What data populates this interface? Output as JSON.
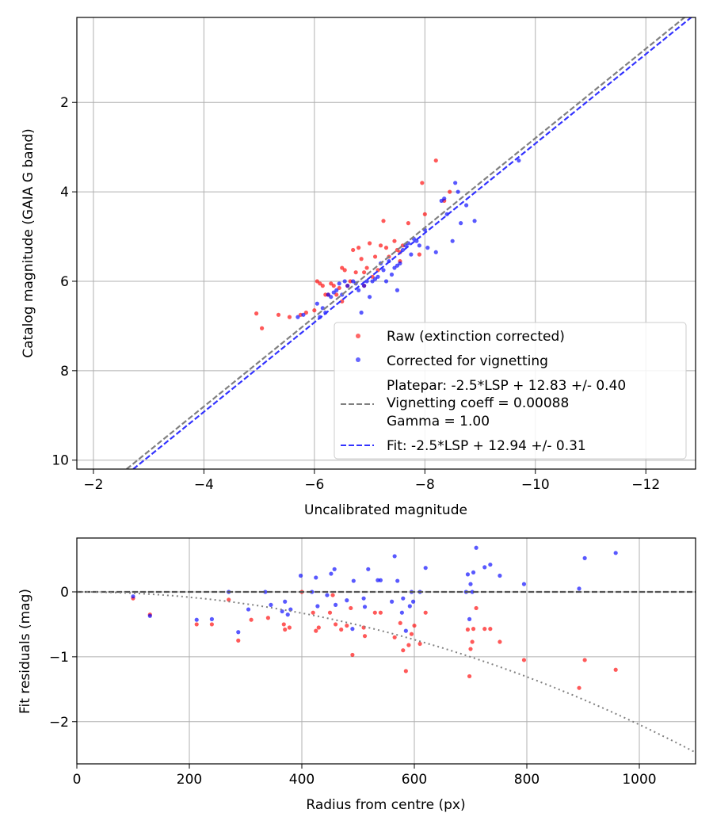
{
  "chart_data": [
    {
      "type": "scatter",
      "xlabel": "Uncalibrated magnitude",
      "ylabel": "Catalog magnitude (GAIA G band)",
      "xlim": [
        -1.7,
        -12.9
      ],
      "ylim": [
        10.2,
        0.1
      ],
      "x_ticks": [
        -2,
        -4,
        -6,
        -8,
        -10,
        -12
      ],
      "x_tick_labels": [
        "−2",
        "−4",
        "−6",
        "−8",
        "−10",
        "−12"
      ],
      "y_ticks": [
        2,
        4,
        6,
        8,
        10
      ],
      "y_tick_labels": [
        "2",
        "4",
        "6",
        "8",
        "10"
      ],
      "grid": true,
      "legend_position": "lower-right",
      "series": [
        {
          "name": "Raw (extinction corrected)",
          "kind": "scatter",
          "color": "#ff0000",
          "points": [
            [
              -4.95,
              6.72
            ],
            [
              -5.05,
              7.05
            ],
            [
              -5.35,
              6.75
            ],
            [
              -5.55,
              6.8
            ],
            [
              -5.75,
              6.75
            ],
            [
              -5.85,
              6.7
            ],
            [
              -6.0,
              6.65
            ],
            [
              -6.05,
              6.0
            ],
            [
              -6.1,
              6.05
            ],
            [
              -6.15,
              6.1
            ],
            [
              -6.2,
              6.3
            ],
            [
              -6.25,
              6.3
            ],
            [
              -6.3,
              6.05
            ],
            [
              -6.35,
              6.1
            ],
            [
              -6.4,
              6.3
            ],
            [
              -6.45,
              6.15
            ],
            [
              -6.5,
              5.7
            ],
            [
              -6.55,
              5.75
            ],
            [
              -6.6,
              6.1
            ],
            [
              -6.65,
              6.0
            ],
            [
              -6.7,
              5.3
            ],
            [
              -6.75,
              5.8
            ],
            [
              -6.8,
              5.25
            ],
            [
              -6.85,
              5.5
            ],
            [
              -6.9,
              5.8
            ],
            [
              -6.95,
              5.7
            ],
            [
              -7.0,
              5.15
            ],
            [
              -7.05,
              5.9
            ],
            [
              -7.1,
              5.45
            ],
            [
              -7.2,
              5.2
            ],
            [
              -7.25,
              4.65
            ],
            [
              -7.3,
              5.25
            ],
            [
              -7.35,
              5.45
            ],
            [
              -7.45,
              5.1
            ],
            [
              -7.5,
              5.3
            ],
            [
              -7.55,
              5.35
            ],
            [
              -7.6,
              5.2
            ],
            [
              -7.7,
              4.7
            ],
            [
              -7.9,
              5.4
            ],
            [
              -8.0,
              4.5
            ],
            [
              -7.95,
              3.8
            ],
            [
              -8.2,
              3.3
            ],
            [
              -8.35,
              4.2
            ],
            [
              -8.45,
              4.0
            ],
            [
              -7.55,
              5.55
            ],
            [
              -6.5,
              6.45
            ],
            [
              -6.9,
              6.1
            ],
            [
              -7.15,
              5.75
            ]
          ]
        },
        {
          "name": "Corrected for vignetting",
          "kind": "scatter",
          "color": "#0000ff",
          "points": [
            [
              -5.7,
              6.8
            ],
            [
              -5.8,
              6.75
            ],
            [
              -6.05,
              6.5
            ],
            [
              -6.1,
              6.8
            ],
            [
              -6.15,
              6.6
            ],
            [
              -6.2,
              6.7
            ],
            [
              -6.25,
              6.3
            ],
            [
              -6.3,
              6.35
            ],
            [
              -6.35,
              6.25
            ],
            [
              -6.4,
              6.2
            ],
            [
              -6.45,
              6.05
            ],
            [
              -6.5,
              6.3
            ],
            [
              -6.55,
              6.0
            ],
            [
              -6.6,
              6.1
            ],
            [
              -6.7,
              6.0
            ],
            [
              -6.75,
              6.05
            ],
            [
              -6.8,
              6.2
            ],
            [
              -6.85,
              6.7
            ],
            [
              -6.9,
              6.1
            ],
            [
              -6.95,
              6.0
            ],
            [
              -7.0,
              6.35
            ],
            [
              -7.05,
              6.0
            ],
            [
              -7.1,
              5.95
            ],
            [
              -7.15,
              5.9
            ],
            [
              -7.2,
              5.6
            ],
            [
              -7.25,
              5.75
            ],
            [
              -7.3,
              6.0
            ],
            [
              -7.35,
              5.55
            ],
            [
              -7.4,
              5.85
            ],
            [
              -7.45,
              5.7
            ],
            [
              -7.5,
              5.65
            ],
            [
              -7.55,
              5.6
            ],
            [
              -7.6,
              5.3
            ],
            [
              -7.65,
              5.2
            ],
            [
              -7.7,
              5.15
            ],
            [
              -7.75,
              5.4
            ],
            [
              -7.8,
              5.05
            ],
            [
              -7.85,
              5.1
            ],
            [
              -7.9,
              5.2
            ],
            [
              -8.0,
              4.85
            ],
            [
              -8.05,
              5.25
            ],
            [
              -8.2,
              5.35
            ],
            [
              -8.3,
              4.2
            ],
            [
              -8.4,
              4.5
            ],
            [
              -8.5,
              5.1
            ],
            [
              -8.55,
              3.8
            ],
            [
              -8.65,
              4.7
            ],
            [
              -8.75,
              4.3
            ],
            [
              -8.9,
              4.65
            ],
            [
              -9.7,
              3.3
            ],
            [
              -8.35,
              4.15
            ],
            [
              -7.5,
              6.2
            ],
            [
              -8.6,
              4.0
            ]
          ]
        },
        {
          "name": "Platepar: -2.5*LSP + 12.83 +/- 0.40\nVignetting coeff = 0.00088\nGamma = 1.00",
          "kind": "line",
          "style": "dashed",
          "color": "#808080",
          "x": [
            -2.6,
            -12.9
          ],
          "y": [
            10.2,
            -0.1
          ]
        },
        {
          "name": "Fit: -2.5*LSP + 12.94 +/- 0.31",
          "kind": "line",
          "style": "dashed",
          "color": "#3333ff",
          "x": [
            -2.72,
            -12.9
          ],
          "y": [
            10.2,
            0.02
          ]
        }
      ]
    },
    {
      "type": "scatter",
      "xlabel": "Radius from centre (px)",
      "ylabel": "Fit residuals (mag)",
      "xlim": [
        0,
        1100
      ],
      "ylim": [
        -2.65,
        0.83
      ],
      "x_ticks": [
        0,
        200,
        400,
        600,
        800,
        1000
      ],
      "x_tick_labels": [
        "0",
        "200",
        "400",
        "600",
        "800",
        "1000"
      ],
      "y_ticks": [
        -2,
        -1,
        0
      ],
      "y_tick_labels": [
        "−2",
        "−1",
        "0"
      ],
      "grid": true,
      "series": [
        {
          "kind": "scatter",
          "color": "#ff0000",
          "points": [
            [
              100,
              -0.1
            ],
            [
              130,
              -0.35
            ],
            [
              213,
              -0.5
            ],
            [
              240,
              -0.5
            ],
            [
              270,
              -0.12
            ],
            [
              287,
              -0.75
            ],
            [
              310,
              -0.43
            ],
            [
              340,
              -0.4
            ],
            [
              368,
              -0.5
            ],
            [
              370,
              -0.58
            ],
            [
              378,
              -0.55
            ],
            [
              400,
              0.0
            ],
            [
              420,
              -0.32
            ],
            [
              425,
              -0.6
            ],
            [
              430,
              -0.55
            ],
            [
              450,
              -0.32
            ],
            [
              455,
              -0.05
            ],
            [
              460,
              -0.5
            ],
            [
              470,
              -0.58
            ],
            [
              480,
              -0.52
            ],
            [
              487,
              -0.25
            ],
            [
              490,
              -0.97
            ],
            [
              510,
              -0.55
            ],
            [
              512,
              -0.68
            ],
            [
              530,
              -0.32
            ],
            [
              540,
              -0.32
            ],
            [
              565,
              -0.7
            ],
            [
              575,
              -0.48
            ],
            [
              580,
              -0.9
            ],
            [
              585,
              -1.22
            ],
            [
              590,
              -0.82
            ],
            [
              595,
              -0.65
            ],
            [
              600,
              -0.52
            ],
            [
              610,
              -0.8
            ],
            [
              620,
              -0.32
            ],
            [
              695,
              -0.58
            ],
            [
              698,
              -1.3
            ],
            [
              700,
              -0.88
            ],
            [
              703,
              -0.77
            ],
            [
              705,
              -0.57
            ],
            [
              710,
              -0.25
            ],
            [
              725,
              -0.57
            ],
            [
              735,
              -0.57
            ],
            [
              752,
              -0.77
            ],
            [
              795,
              -1.05
            ],
            [
              893,
              -1.48
            ],
            [
              903,
              -1.05
            ],
            [
              958,
              -1.2
            ]
          ]
        },
        {
          "kind": "scatter",
          "color": "#0000ff",
          "points": [
            [
              100,
              -0.07
            ],
            [
              130,
              -0.37
            ],
            [
              213,
              -0.43
            ],
            [
              240,
              -0.42
            ],
            [
              270,
              0.0
            ],
            [
              287,
              -0.62
            ],
            [
              305,
              -0.27
            ],
            [
              335,
              0.0
            ],
            [
              345,
              -0.2
            ],
            [
              365,
              -0.3
            ],
            [
              370,
              -0.15
            ],
            [
              375,
              -0.35
            ],
            [
              380,
              -0.27
            ],
            [
              398,
              0.25
            ],
            [
              418,
              0.0
            ],
            [
              425,
              0.22
            ],
            [
              428,
              -0.22
            ],
            [
              445,
              -0.05
            ],
            [
              452,
              0.28
            ],
            [
              458,
              0.35
            ],
            [
              460,
              -0.2
            ],
            [
              480,
              -0.13
            ],
            [
              490,
              -0.57
            ],
            [
              492,
              0.17
            ],
            [
              510,
              -0.1
            ],
            [
              512,
              -0.23
            ],
            [
              518,
              0.35
            ],
            [
              535,
              0.18
            ],
            [
              540,
              0.18
            ],
            [
              560,
              -0.15
            ],
            [
              565,
              0.55
            ],
            [
              570,
              0.17
            ],
            [
              578,
              -0.32
            ],
            [
              580,
              -0.1
            ],
            [
              585,
              -0.6
            ],
            [
              592,
              -0.22
            ],
            [
              595,
              0.0
            ],
            [
              598,
              -0.15
            ],
            [
              610,
              0.0
            ],
            [
              620,
              0.37
            ],
            [
              692,
              0.0
            ],
            [
              695,
              0.27
            ],
            [
              698,
              -0.42
            ],
            [
              700,
              0.12
            ],
            [
              703,
              0.0
            ],
            [
              705,
              0.3
            ],
            [
              710,
              0.68
            ],
            [
              725,
              0.38
            ],
            [
              735,
              0.42
            ],
            [
              752,
              0.25
            ],
            [
              795,
              0.12
            ],
            [
              893,
              0.05
            ],
            [
              903,
              0.52
            ],
            [
              958,
              0.6
            ]
          ]
        },
        {
          "kind": "line",
          "style": "dashed",
          "color": "#555555",
          "x": [
            0,
            1100
          ],
          "y": [
            0,
            0
          ]
        },
        {
          "kind": "line",
          "style": "dotted",
          "color": "#808080",
          "curve": "vignetting",
          "coeff": 0.00088
        }
      ]
    }
  ]
}
